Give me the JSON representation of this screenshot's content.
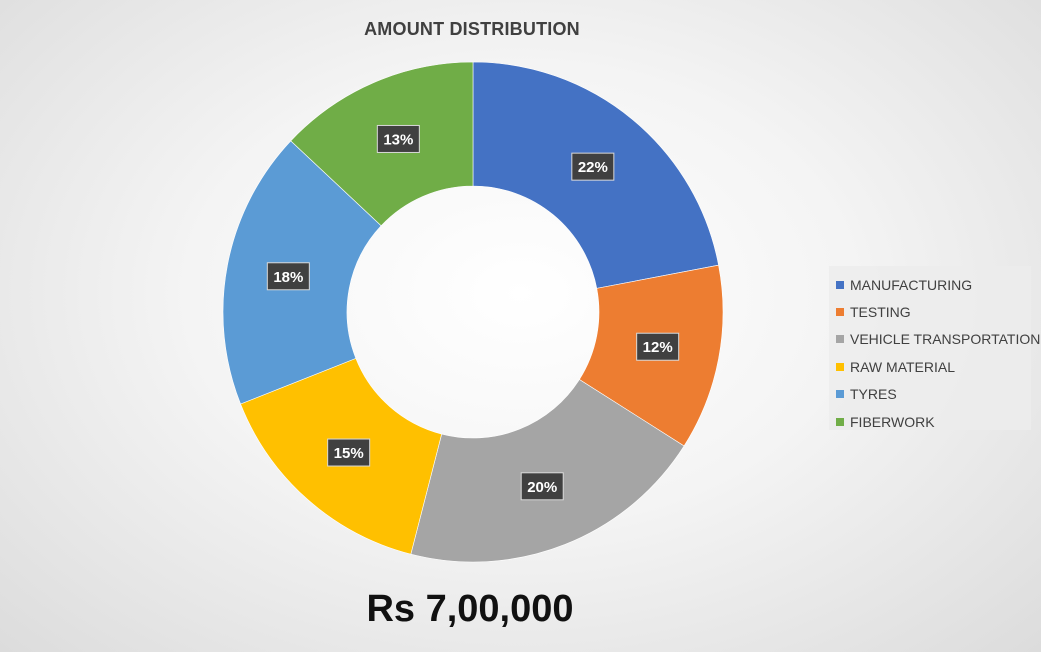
{
  "chart_data": {
    "type": "pie",
    "variant": "donut",
    "title": "AMOUNT DISTRIBUTION",
    "categories": [
      "MANUFACTURING",
      "TESTING",
      "VEHICLE TRANSPORTATION",
      "RAW MATERIAL",
      "TYRES",
      "FIBERWORK"
    ],
    "values": [
      22,
      12,
      20,
      15,
      18,
      13
    ],
    "data_labels": [
      "22%",
      "12%",
      "20%",
      "15%",
      "18%",
      "13%"
    ],
    "colors": [
      "#4472C4",
      "#ED7D31",
      "#A5A5A5",
      "#FFC000",
      "#5B9BD5",
      "#70AD47"
    ],
    "legend_position": "right",
    "total_label": "Rs 7,00,000"
  }
}
